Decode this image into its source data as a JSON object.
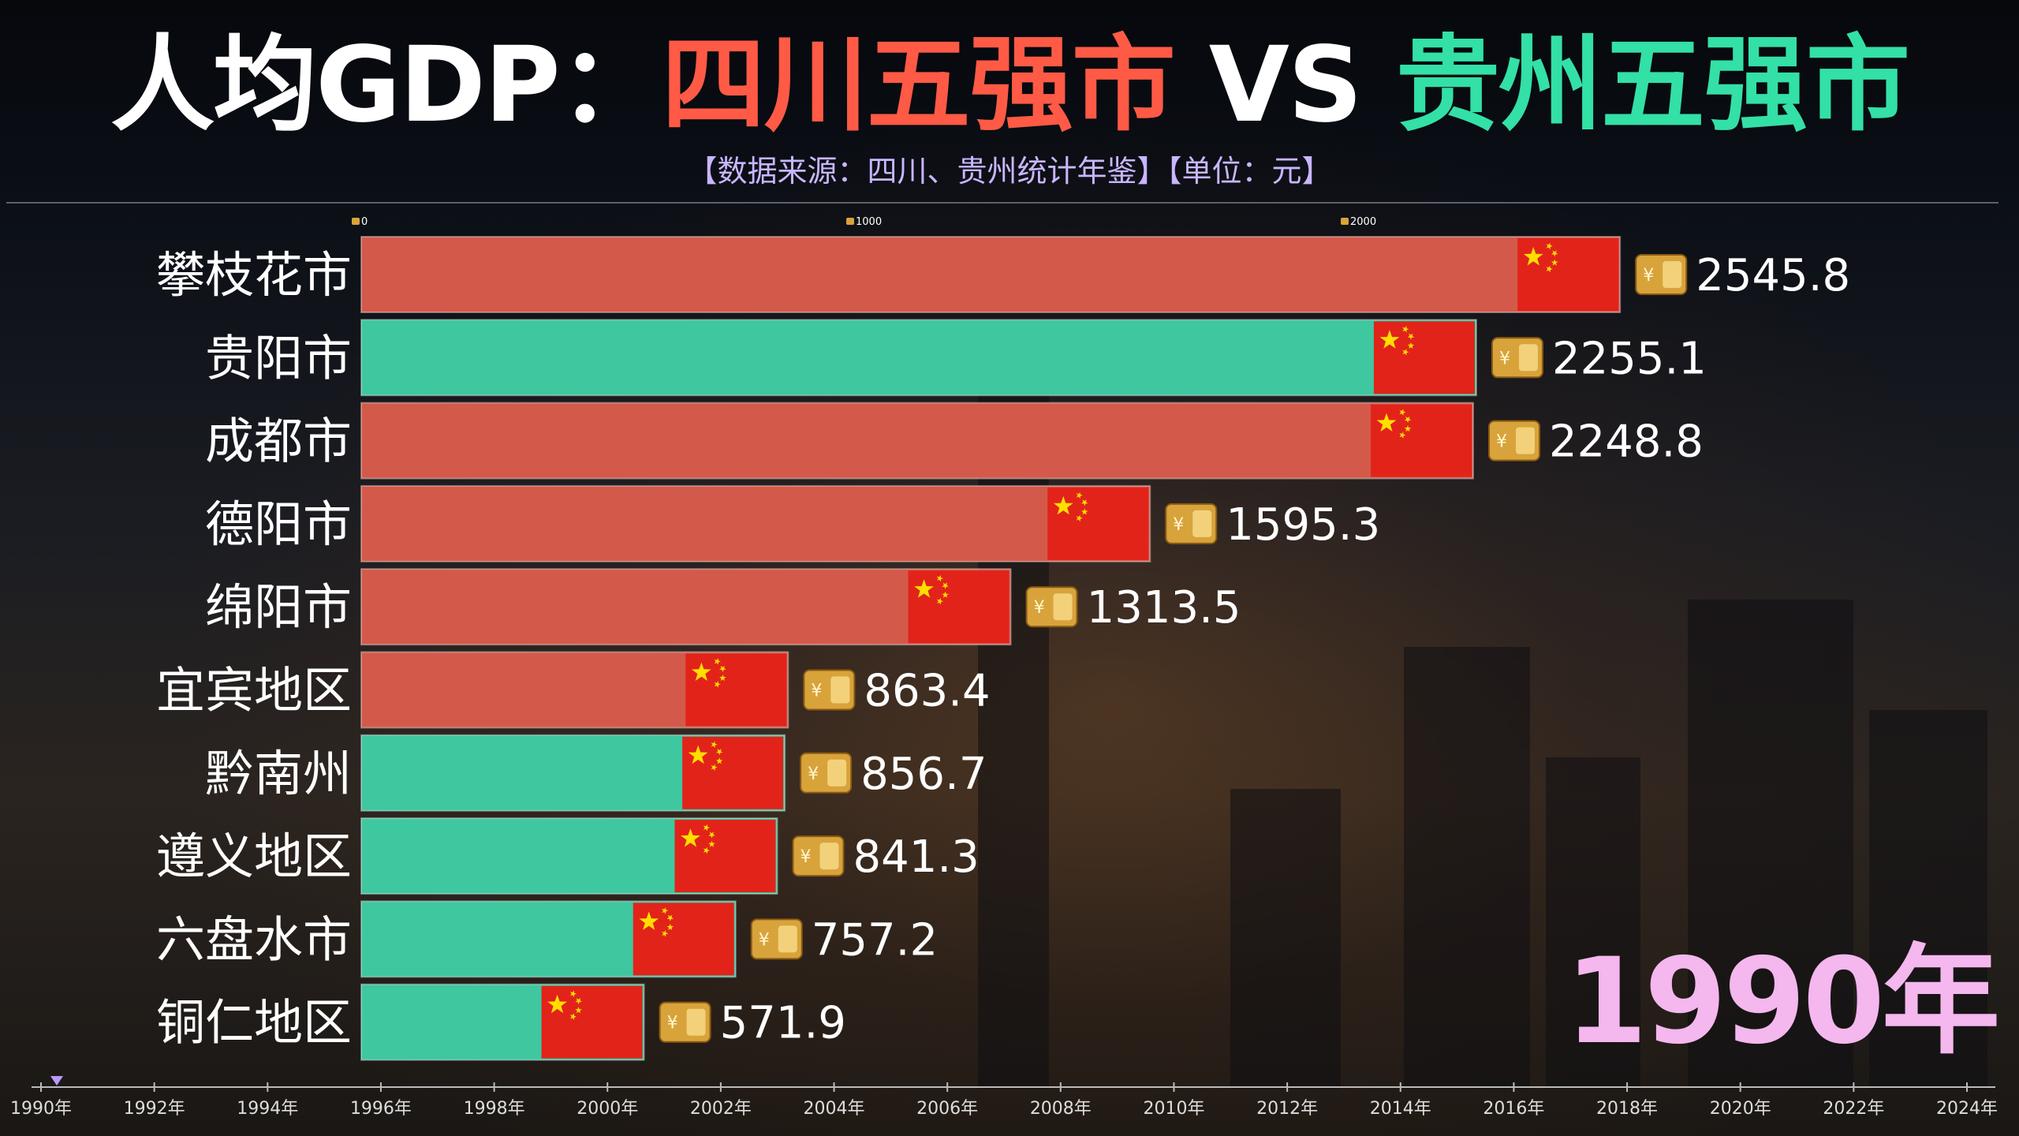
{
  "title": {
    "prefix": "人均GDP：",
    "left": "四川五强市",
    "vs": " VS ",
    "right": "贵州五强市"
  },
  "subtitle": "【数据来源：四川、贵州统计年鉴】【单位：元】",
  "colors": {
    "sichuan": "#d35a4a",
    "guizhou": "#3fc79f",
    "flag": "#e2231a",
    "star": "#ffde00",
    "year": "#f4b7ee"
  },
  "icons": {
    "value_icon": "money-bag-icon",
    "flag_icon": "china-flag-icon"
  },
  "current_year": "1990年",
  "chart_data": {
    "type": "bar",
    "orientation": "horizontal",
    "title": "人均GDP：四川五强市 VS 贵州五强市",
    "unit": "元",
    "xlim": [
      0,
      2600
    ],
    "axis_ticks": [
      0,
      1000,
      2000
    ],
    "axis_tick_labels": [
      "0",
      "1000",
      "2000"
    ],
    "series": [
      {
        "name": "四川",
        "color": "#d35a4a"
      },
      {
        "name": "贵州",
        "color": "#3fc79f"
      }
    ],
    "bars": [
      {
        "category": "攀枝花市",
        "value": 2545.8,
        "label": "2545.8",
        "series": "四川"
      },
      {
        "category": "贵阳市",
        "value": 2255.1,
        "label": "2255.1",
        "series": "贵州"
      },
      {
        "category": "成都市",
        "value": 2248.8,
        "label": "2248.8",
        "series": "四川"
      },
      {
        "category": "德阳市",
        "value": 1595.3,
        "label": "1595.3",
        "series": "四川"
      },
      {
        "category": "绵阳市",
        "value": 1313.5,
        "label": "1313.5",
        "series": "四川"
      },
      {
        "category": "宜宾地区",
        "value": 863.4,
        "label": "863.4",
        "series": "四川"
      },
      {
        "category": "黔南州",
        "value": 856.7,
        "label": "856.7",
        "series": "贵州"
      },
      {
        "category": "遵义地区",
        "value": 841.3,
        "label": "841.3",
        "series": "贵州"
      },
      {
        "category": "六盘水市",
        "value": 757.2,
        "label": "757.2",
        "series": "贵州"
      },
      {
        "category": "铜仁地区",
        "value": 571.9,
        "label": "571.9",
        "series": "贵州"
      }
    ],
    "timeline": {
      "labels": [
        "1990年",
        "1992年",
        "1994年",
        "1996年",
        "1998年",
        "2000年",
        "2002年",
        "2004年",
        "2006年",
        "2008年",
        "2010年",
        "2012年",
        "2014年",
        "2016年",
        "2018年",
        "2020年",
        "2022年",
        "2024年"
      ],
      "current": "1990年"
    }
  }
}
